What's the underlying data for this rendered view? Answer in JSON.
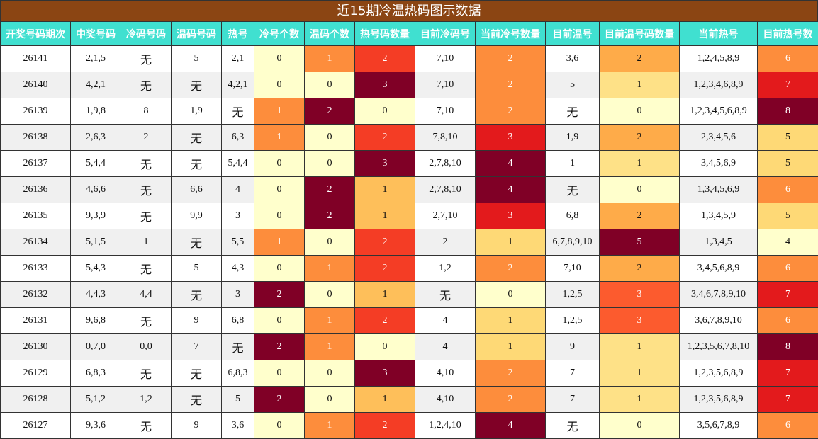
{
  "header": {
    "title": "近15期冷温热码图示数据"
  },
  "table": {
    "columns": [
      "开奖号码期次",
      "中奖号码",
      "冷码号码",
      "温码号码",
      "热号",
      "冷号个数",
      "温码个数",
      "热号码数量",
      "目前冷码号",
      "当前冷号数量",
      "目前温号",
      "目前温号码数量",
      "当前热号",
      "目前热号数"
    ],
    "rows": [
      [
        "26141",
        "2,1,5",
        "无",
        "5",
        "2,1",
        0,
        1,
        2,
        "7,10",
        2,
        "3,6",
        2,
        "1,2,4,5,8,9",
        6
      ],
      [
        "26140",
        "4,2,1",
        "无",
        "无",
        "4,2,1",
        0,
        0,
        3,
        "7,10",
        2,
        "5",
        1,
        "1,2,3,4,6,8,9",
        7
      ],
      [
        "26139",
        "1,9,8",
        "8",
        "1,9",
        "无",
        1,
        2,
        0,
        "7,10",
        2,
        "无",
        0,
        "1,2,3,4,5,6,8,9",
        8
      ],
      [
        "26138",
        "2,6,3",
        "2",
        "无",
        "6,3",
        1,
        0,
        2,
        "7,8,10",
        3,
        "1,9",
        2,
        "2,3,4,5,6",
        5
      ],
      [
        "26137",
        "5,4,4",
        "无",
        "无",
        "5,4,4",
        0,
        0,
        3,
        "2,7,8,10",
        4,
        "1",
        1,
        "3,4,5,6,9",
        5
      ],
      [
        "26136",
        "4,6,6",
        "无",
        "6,6",
        "4",
        0,
        2,
        1,
        "2,7,8,10",
        4,
        "无",
        0,
        "1,3,4,5,6,9",
        6
      ],
      [
        "26135",
        "9,3,9",
        "无",
        "9,9",
        "3",
        0,
        2,
        1,
        "2,7,10",
        3,
        "6,8",
        2,
        "1,3,4,5,9",
        5
      ],
      [
        "26134",
        "5,1,5",
        "1",
        "无",
        "5,5",
        1,
        0,
        2,
        "2",
        1,
        "6,7,8,9,10",
        5,
        "1,3,4,5",
        4
      ],
      [
        "26133",
        "5,4,3",
        "无",
        "5",
        "4,3",
        0,
        1,
        2,
        "1,2",
        2,
        "7,10",
        2,
        "3,4,5,6,8,9",
        6
      ],
      [
        "26132",
        "4,4,3",
        "4,4",
        "无",
        "3",
        2,
        0,
        1,
        "无",
        0,
        "1,2,5",
        3,
        "3,4,6,7,8,9,10",
        7
      ],
      [
        "26131",
        "9,6,8",
        "无",
        "9",
        "6,8",
        0,
        1,
        2,
        "4",
        1,
        "1,2,5",
        3,
        "3,6,7,8,9,10",
        6
      ],
      [
        "26130",
        "0,7,0",
        "0,0",
        "7",
        "无",
        2,
        1,
        0,
        "4",
        1,
        "9",
        1,
        "1,2,3,5,6,7,8,10",
        8
      ],
      [
        "26129",
        "6,8,3",
        "无",
        "无",
        "6,8,3",
        0,
        0,
        3,
        "4,10",
        2,
        "7",
        1,
        "1,2,3,5,6,8,9",
        7
      ],
      [
        "26128",
        "5,1,2",
        "1,2",
        "无",
        "5",
        2,
        0,
        1,
        "4,10",
        2,
        "7",
        1,
        "1,2,3,5,6,8,9",
        7
      ],
      [
        "26127",
        "9,3,6",
        "无",
        "9",
        "3,6",
        0,
        1,
        2,
        "1,2,4,10",
        4,
        "无",
        0,
        "3,5,6,7,8,9",
        6
      ]
    ]
  }
}
